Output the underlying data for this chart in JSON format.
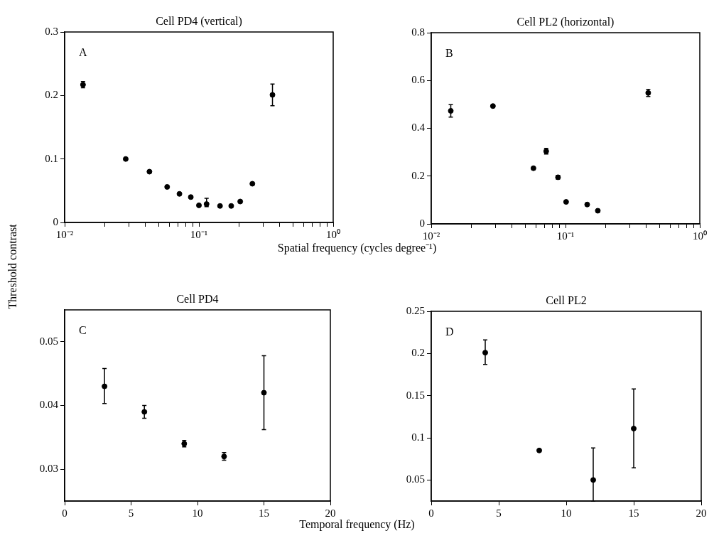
{
  "chart_data": [
    {
      "type": "scatter",
      "title": "Cell PD4 (vertical)",
      "xlabel": "Spatial frequency (cycles degree⁻¹)",
      "ylabel": "Threshold contrast",
      "annotations": [
        "A"
      ],
      "log": "x",
      "grid": false,
      "marker": "circle",
      "color": "#000000",
      "x": [
        0.0137,
        0.0285,
        0.0428,
        0.058,
        0.0716,
        0.087,
        0.1,
        0.114,
        0.1436,
        0.174,
        0.203,
        0.25,
        0.353
      ],
      "values": [
        0.217,
        0.1,
        0.08,
        0.056,
        0.045,
        0.04,
        0.027,
        0.029,
        0.026,
        0.026,
        0.033,
        0.061,
        0.201
      ],
      "errors": [
        [
          0.212,
          0.222
        ],
        null,
        null,
        null,
        null,
        null,
        null,
        [
          0.025,
          0.038
        ],
        null,
        null,
        null,
        null,
        0.017
      ],
      "xlim": [
        0.01,
        1
      ],
      "xticks": [
        {
          "value": 0.01,
          "label": "10⁻²"
        },
        {
          "value": 0.02,
          "label": null
        },
        {
          "value": 0.03,
          "label": null
        },
        {
          "value": 0.04,
          "label": null
        },
        {
          "value": 0.05,
          "label": null
        },
        {
          "value": 0.06,
          "label": null
        },
        {
          "value": 0.07,
          "label": null
        },
        {
          "value": 0.08,
          "label": null
        },
        {
          "value": 0.09,
          "label": null
        },
        {
          "value": 0.1,
          "label": "10⁻¹"
        },
        {
          "value": 0.2,
          "label": null
        },
        {
          "value": 0.3,
          "label": null
        },
        {
          "value": 0.4,
          "label": null
        },
        {
          "value": 0.5,
          "label": null
        },
        {
          "value": 0.6,
          "label": null
        },
        {
          "value": 0.7,
          "label": null
        },
        {
          "value": 0.8,
          "label": null
        },
        {
          "value": 0.9,
          "label": null
        },
        {
          "value": 1,
          "label": "10⁰"
        }
      ],
      "ylim": [
        0,
        0.3
      ],
      "yticks": [
        0,
        0.1,
        0.2,
        0.3
      ]
    },
    {
      "type": "scatter",
      "title": "Cell PL2 (horizontal)",
      "annotations": [
        "B"
      ],
      "log": "x",
      "grid": false,
      "marker": "circle",
      "color": "#000000",
      "x": [
        0.01398,
        0.0288,
        0.0577,
        0.0718,
        0.0879,
        0.101,
        0.145,
        0.174,
        0.413
      ],
      "values": [
        0.473,
        0.493,
        0.233,
        0.304,
        0.195,
        0.092,
        0.081,
        0.055,
        0.548
      ],
      "errors": [
        0.026,
        null,
        null,
        0.012,
        0.008,
        null,
        null,
        null,
        0.015
      ],
      "xlim": [
        0.01,
        1
      ],
      "xticks": [
        {
          "value": 0.01,
          "label": "10⁻²"
        },
        {
          "value": 0.02,
          "label": null
        },
        {
          "value": 0.03,
          "label": null
        },
        {
          "value": 0.04,
          "label": null
        },
        {
          "value": 0.05,
          "label": null
        },
        {
          "value": 0.06,
          "label": null
        },
        {
          "value": 0.07,
          "label": null
        },
        {
          "value": 0.08,
          "label": null
        },
        {
          "value": 0.09,
          "label": null
        },
        {
          "value": 0.1,
          "label": "10⁻¹"
        },
        {
          "value": 0.2,
          "label": null
        },
        {
          "value": 0.3,
          "label": null
        },
        {
          "value": 0.4,
          "label": null
        },
        {
          "value": 0.5,
          "label": null
        },
        {
          "value": 0.6,
          "label": null
        },
        {
          "value": 0.7,
          "label": null
        },
        {
          "value": 0.8,
          "label": null
        },
        {
          "value": 0.9,
          "label": null
        },
        {
          "value": 1,
          "label": "10⁰"
        }
      ],
      "ylim": [
        0,
        0.8
      ],
      "yticks": [
        0,
        0.2,
        0.4,
        0.6,
        0.8
      ]
    },
    {
      "type": "scatter",
      "title": "Cell PD4",
      "xlabel": "Temporal frequency (Hz)",
      "annotations": [
        "C"
      ],
      "grid": false,
      "marker": "circle",
      "color": "#000000",
      "x": [
        3,
        6,
        9,
        12,
        15
      ],
      "values": [
        0.043,
        0.039,
        0.034,
        0.032,
        0.042
      ],
      "errors": [
        [
          0.0403,
          0.0458
        ],
        0.001,
        0.0005,
        0.0006,
        [
          0.0362,
          0.0478
        ]
      ],
      "xlim": [
        0,
        20
      ],
      "xticks": [
        0,
        5,
        10,
        15,
        20
      ],
      "ylim": [
        0.025,
        0.055
      ],
      "yticks": [
        {
          "value": 0.03,
          "label": "0.03"
        },
        {
          "value": 0.04,
          "label": "0.04"
        },
        {
          "value": 0.05,
          "label": "0.05"
        }
      ]
    },
    {
      "type": "scatter",
      "title": "Cell PL2",
      "annotations": [
        "D"
      ],
      "grid": false,
      "marker": "circle",
      "color": "#000000",
      "x": [
        4,
        8,
        12,
        15
      ],
      "values": [
        0.201,
        0.085,
        0.05,
        0.111
      ],
      "errors": [
        [
          0.187,
          0.216
        ],
        null,
        [
          0.025,
          0.088
        ],
        [
          0.0645,
          0.158
        ]
      ],
      "xlim": [
        0,
        20
      ],
      "xticks": [
        0,
        5,
        10,
        15,
        20
      ],
      "ylim": [
        0.025,
        0.25
      ],
      "yticks": [
        0.05,
        0.1,
        0.15,
        0.2,
        0.25
      ]
    }
  ]
}
